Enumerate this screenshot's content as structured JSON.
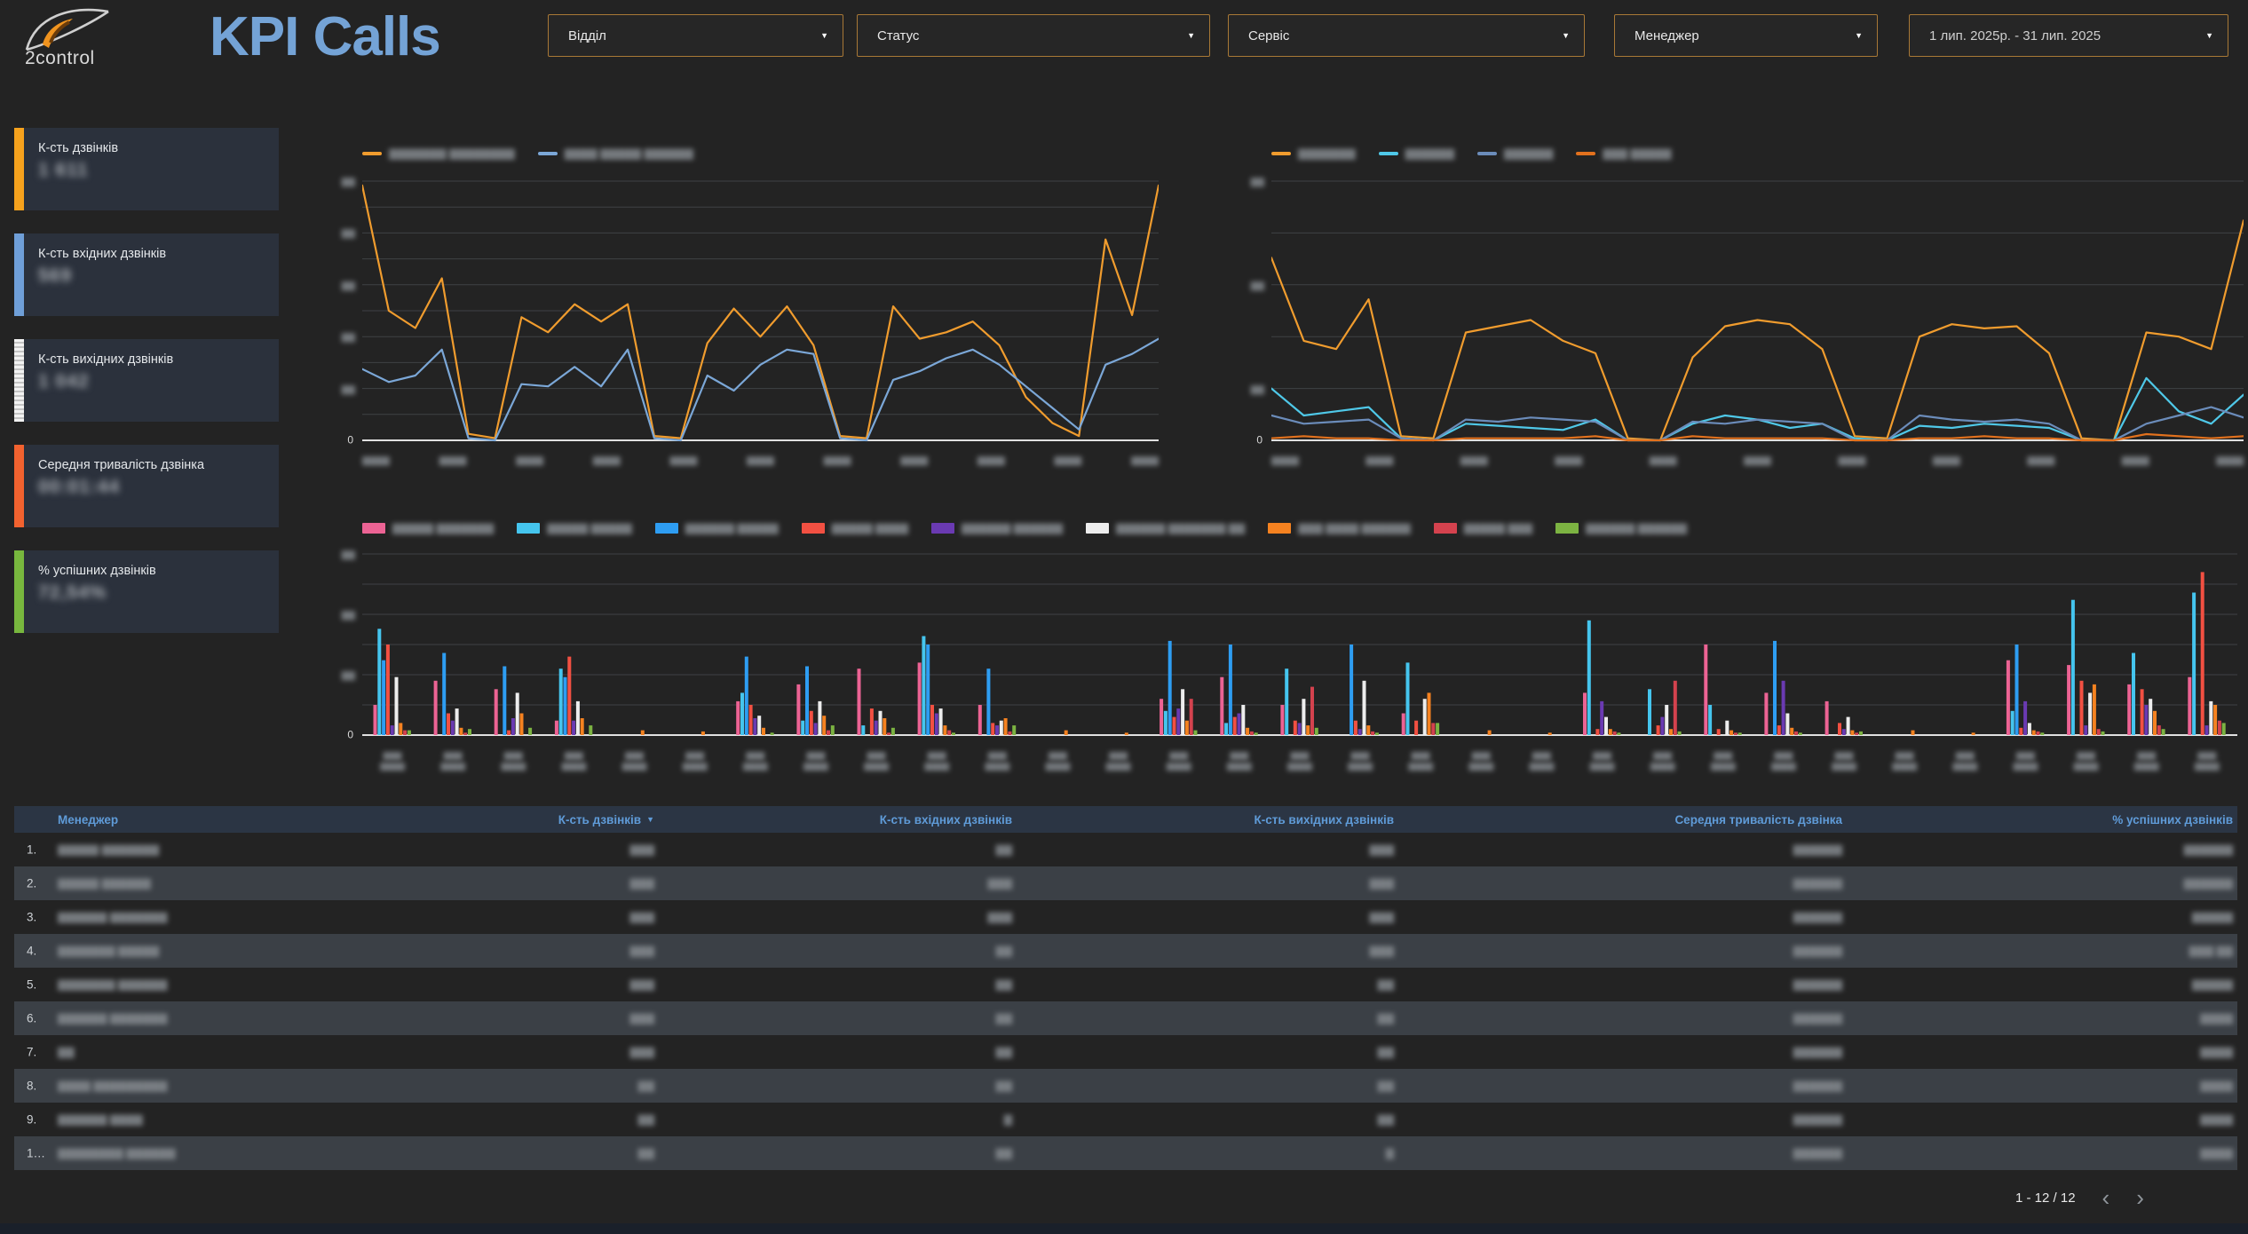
{
  "brand": {
    "name": "2control"
  },
  "header": {
    "title": "KPI Calls",
    "filters": [
      {
        "label": "Відділ"
      },
      {
        "label": "Статус"
      },
      {
        "label": "Сервіс"
      },
      {
        "label": "Менеджер"
      }
    ],
    "date_range": "1 лип. 2025р. - 31 лип. 2025"
  },
  "kpi_cards": [
    {
      "label": "К-сть дзвінків",
      "value_masked": "1 611",
      "accent": "#f6a21d"
    },
    {
      "label": "К-сть вхідних дзвінків",
      "value_masked": "569",
      "accent": "#6f9fd8"
    },
    {
      "label": "К-сть вихідних дзвінків",
      "value_masked": "1 042",
      "accent": "#e3e3e3"
    },
    {
      "label": "Середня тривалість дзвінка",
      "value_masked": "00:01:44",
      "accent": "#f2622f"
    },
    {
      "label": "% успішних дзвінків",
      "value_masked": "72,54%",
      "accent": "#78b73e"
    }
  ],
  "chart_data": [
    {
      "id": "calls-per-day",
      "type": "line",
      "title": "",
      "xlabel": "",
      "ylabel": "",
      "x": "days 1-31 (blurred date tick labels)",
      "ylim": [
        0,
        120
      ],
      "gridlines": 10,
      "x_tick_masks": 11,
      "legend_position": "top",
      "legend": [
        {
          "color": "#f09c2e",
          "label_masked": "▇▇▇▇▇▇▇ ▇▇▇▇▇▇▇▇"
        },
        {
          "color": "#7ba7d7",
          "label_masked": "▇▇▇▇ ▇▇▇▇▇ ▇▇▇▇▇▇"
        }
      ],
      "series": [
        {
          "name": "series-orange",
          "color": "#f09c2e",
          "values": [
            118,
            60,
            52,
            75,
            3,
            1,
            57,
            50,
            63,
            55,
            63,
            2,
            1,
            45,
            61,
            48,
            62,
            44,
            2,
            1,
            62,
            47,
            50,
            55,
            44,
            20,
            8,
            2,
            93,
            58,
            118
          ]
        },
        {
          "name": "series-blue",
          "color": "#7ba7d7",
          "values": [
            33,
            27,
            30,
            42,
            1,
            0,
            26,
            25,
            34,
            25,
            42,
            1,
            0,
            30,
            23,
            35,
            42,
            40,
            1,
            0,
            28,
            32,
            38,
            42,
            35,
            25,
            15,
            5,
            35,
            40,
            47
          ]
        }
      ]
    },
    {
      "id": "calls-per-day-by-type",
      "type": "line",
      "title": "",
      "xlabel": "",
      "ylabel": "",
      "x": "days 1-31 (blurred date tick labels)",
      "ylim": [
        0,
        125
      ],
      "gridlines": 5,
      "x_tick_masks": 11,
      "legend_position": "top",
      "legend": [
        {
          "color": "#f09c2e",
          "label_masked": "▇▇▇▇▇▇▇"
        },
        {
          "color": "#4fc8e8",
          "label_masked": "▇▇▇▇▇▇"
        },
        {
          "color": "#6b8cba",
          "label_masked": "▇▇▇▇▇▇"
        },
        {
          "color": "#e2711d",
          "label_masked": "▇▇▇ ▇▇▇▇▇"
        }
      ],
      "series": [
        {
          "name": "series-orange",
          "color": "#f09c2e",
          "values": [
            88,
            48,
            44,
            68,
            2,
            1,
            52,
            55,
            58,
            48,
            42,
            1,
            0,
            40,
            55,
            58,
            56,
            44,
            2,
            1,
            50,
            56,
            54,
            55,
            42,
            1,
            0,
            52,
            50,
            44,
            106
          ]
        },
        {
          "name": "series-cyan",
          "color": "#4fc8e8",
          "values": [
            25,
            12,
            14,
            16,
            1,
            0,
            8,
            7,
            6,
            5,
            10,
            0,
            0,
            8,
            12,
            10,
            6,
            8,
            1,
            0,
            7,
            6,
            8,
            7,
            6,
            0,
            0,
            30,
            14,
            8,
            22
          ]
        },
        {
          "name": "series-slate",
          "color": "#6b8cba",
          "values": [
            12,
            8,
            9,
            10,
            1,
            0,
            10,
            9,
            11,
            10,
            9,
            0,
            0,
            9,
            8,
            10,
            9,
            8,
            0,
            0,
            12,
            10,
            9,
            10,
            8,
            0,
            0,
            8,
            12,
            16,
            11
          ]
        },
        {
          "name": "series-amber",
          "color": "#e2711d",
          "values": [
            1,
            2,
            1,
            1,
            0,
            0,
            1,
            1,
            1,
            1,
            2,
            0,
            0,
            2,
            1,
            1,
            1,
            1,
            0,
            0,
            1,
            1,
            2,
            1,
            1,
            0,
            0,
            3,
            2,
            1,
            2
          ]
        }
      ]
    },
    {
      "id": "calls-per-day-by-manager",
      "type": "bar",
      "title": "",
      "xlabel": "",
      "ylabel": "",
      "categories": "days 1-31 (blurred two-line date labels)",
      "ylim": [
        0,
        150
      ],
      "gridlines": 6,
      "legend_position": "top",
      "legend": [
        {
          "color": "#ec6394",
          "label_masked": "▇▇▇▇▇ ▇▇▇▇▇▇▇"
        },
        {
          "color": "#45c5ee",
          "label_masked": "▇▇▇▇▇ ▇▇▇▇▇"
        },
        {
          "color": "#2e9df2",
          "label_masked": "▇▇▇▇▇▇ ▇▇▇▇▇"
        },
        {
          "color": "#f25042",
          "label_masked": "▇▇▇▇▇ ▇▇▇▇"
        },
        {
          "color": "#6a3ab2",
          "label_masked": "▇▇▇▇▇▇ ▇▇▇▇▇▇"
        },
        {
          "color": "#ededed",
          "label_masked": "▇▇▇▇▇▇ ▇▇▇▇▇▇▇ ▇▇"
        },
        {
          "color": "#f58220",
          "label_masked": "▇▇▇ ▇▇▇▇ ▇▇▇▇▇▇"
        },
        {
          "color": "#d4424e",
          "label_masked": "▇▇▇▇▇ ▇▇▇"
        },
        {
          "color": "#7cb342",
          "label_masked": "▇▇▇▇▇▇ ▇▇▇▇▇▇"
        }
      ],
      "series": [
        {
          "name": "bar-pink",
          "color": "#ec6394",
          "values": [
            25,
            45,
            38,
            12,
            0,
            0,
            28,
            42,
            55,
            60,
            25,
            0,
            0,
            30,
            48,
            25,
            0,
            18,
            0,
            0,
            35,
            0,
            75,
            35,
            28,
            0,
            0,
            62,
            58,
            42,
            48
          ]
        },
        {
          "name": "bar-cyan",
          "color": "#45c5ee",
          "values": [
            88,
            0,
            0,
            55,
            0,
            0,
            35,
            12,
            8,
            82,
            0,
            0,
            0,
            20,
            10,
            55,
            0,
            60,
            0,
            0,
            95,
            38,
            25,
            0,
            0,
            0,
            0,
            20,
            112,
            68,
            118
          ]
        },
        {
          "name": "bar-blue",
          "color": "#2e9df2",
          "values": [
            62,
            68,
            57,
            48,
            0,
            0,
            65,
            57,
            0,
            75,
            55,
            0,
            0,
            78,
            75,
            0,
            75,
            0,
            0,
            0,
            0,
            0,
            0,
            78,
            0,
            0,
            0,
            75,
            0,
            0,
            0
          ]
        },
        {
          "name": "bar-red",
          "color": "#f25042",
          "values": [
            75,
            18,
            4,
            65,
            0,
            0,
            25,
            20,
            22,
            25,
            10,
            0,
            0,
            15,
            15,
            12,
            12,
            12,
            0,
            0,
            5,
            8,
            5,
            8,
            10,
            0,
            0,
            6,
            45,
            38,
            135
          ]
        },
        {
          "name": "bar-purple",
          "color": "#6a3ab2",
          "values": [
            8,
            12,
            14,
            12,
            0,
            0,
            14,
            10,
            12,
            18,
            8,
            0,
            0,
            22,
            18,
            10,
            5,
            0,
            0,
            0,
            28,
            15,
            0,
            45,
            5,
            0,
            0,
            28,
            8,
            25,
            8
          ]
        },
        {
          "name": "bar-white",
          "color": "#ededed",
          "values": [
            48,
            22,
            35,
            28,
            0,
            0,
            16,
            28,
            20,
            22,
            12,
            0,
            0,
            38,
            25,
            30,
            45,
            30,
            0,
            0,
            15,
            25,
            12,
            18,
            15,
            0,
            0,
            10,
            35,
            30,
            28
          ]
        },
        {
          "name": "bar-orange",
          "color": "#f58220",
          "values": [
            10,
            6,
            18,
            14,
            4,
            3,
            6,
            16,
            14,
            8,
            14,
            4,
            2,
            12,
            6,
            8,
            8,
            35,
            4,
            2,
            5,
            5,
            4,
            6,
            4,
            4,
            2,
            4,
            42,
            20,
            25
          ]
        },
        {
          "name": "bar-crimson",
          "color": "#d4424e",
          "values": [
            4,
            2,
            0,
            0,
            0,
            0,
            0,
            4,
            2,
            4,
            3,
            0,
            0,
            30,
            3,
            40,
            3,
            10,
            0,
            0,
            3,
            45,
            2,
            3,
            2,
            0,
            0,
            3,
            5,
            8,
            12
          ]
        },
        {
          "name": "bar-green",
          "color": "#7cb342",
          "values": [
            4,
            5,
            6,
            8,
            0,
            0,
            2,
            8,
            6,
            2,
            8,
            0,
            0,
            4,
            2,
            6,
            2,
            10,
            0,
            0,
            2,
            3,
            2,
            2,
            3,
            0,
            0,
            2,
            3,
            5,
            10
          ]
        }
      ]
    }
  ],
  "table": {
    "columns": [
      {
        "label": "Менеджер",
        "align": "left",
        "sorted": false
      },
      {
        "label": "К-сть дзвінків",
        "align": "right",
        "sorted": true
      },
      {
        "label": "К-сть вхідних дзвінків",
        "align": "right",
        "sorted": false
      },
      {
        "label": "К-сть вихідних дзвінків",
        "align": "right",
        "sorted": false
      },
      {
        "label": "Середня тривалість дзвінка",
        "align": "right",
        "sorted": false
      },
      {
        "label": "% успішних дзвінків",
        "align": "right",
        "sorted": false
      }
    ],
    "rows": [
      {
        "num": "1.",
        "name_masked": "▇▇▇▇▇ ▇▇▇▇▇▇▇",
        "cells_masked": [
          "▇▇▇",
          "▇▇",
          "▇▇▇",
          "▇▇▇▇▇▇",
          "▇▇▇▇▇▇"
        ]
      },
      {
        "num": "2.",
        "name_masked": "▇▇▇▇▇ ▇▇▇▇▇▇",
        "cells_masked": [
          "▇▇▇",
          "▇▇▇",
          "▇▇▇",
          "▇▇▇▇▇▇",
          "▇▇▇▇▇▇"
        ]
      },
      {
        "num": "3.",
        "name_masked": "▇▇▇▇▇▇ ▇▇▇▇▇▇▇",
        "cells_masked": [
          "▇▇▇",
          "▇▇▇",
          "▇▇▇",
          "▇▇▇▇▇▇",
          "▇▇▇▇▇"
        ]
      },
      {
        "num": "4.",
        "name_masked": "▇▇▇▇▇▇▇ ▇▇▇▇▇",
        "cells_masked": [
          "▇▇▇",
          "▇▇",
          "▇▇▇",
          "▇▇▇▇▇▇",
          "▇▇▇ ▇▇"
        ]
      },
      {
        "num": "5.",
        "name_masked": "▇▇▇▇▇▇▇ ▇▇▇▇▇▇",
        "cells_masked": [
          "▇▇▇",
          "▇▇",
          "▇▇",
          "▇▇▇▇▇▇",
          "▇▇▇▇▇"
        ]
      },
      {
        "num": "6.",
        "name_masked": "▇▇▇▇▇▇ ▇▇▇▇▇▇▇",
        "cells_masked": [
          "▇▇▇",
          "▇▇",
          "▇▇",
          "▇▇▇▇▇▇",
          "▇▇▇▇"
        ]
      },
      {
        "num": "7.",
        "name_masked": "▇▇",
        "cells_masked": [
          "▇▇▇",
          "▇▇",
          "▇▇",
          "▇▇▇▇▇▇",
          "▇▇▇▇"
        ]
      },
      {
        "num": "8.",
        "name_masked": "▇▇▇▇ ▇▇▇▇▇▇▇▇▇",
        "cells_masked": [
          "▇▇",
          "▇▇",
          "▇▇",
          "▇▇▇▇▇▇",
          "▇▇▇▇"
        ]
      },
      {
        "num": "9.",
        "name_masked": "▇▇▇▇▇▇ ▇▇▇▇",
        "cells_masked": [
          "▇▇",
          "▇",
          "▇▇",
          "▇▇▇▇▇▇",
          "▇▇▇▇"
        ]
      },
      {
        "num": "1…",
        "name_masked": "▇▇▇▇▇▇▇▇ ▇▇▇▇▇▇",
        "cells_masked": [
          "▇▇",
          "▇▇",
          "▇",
          "▇▇▇▇▇▇",
          "▇▇▇▇"
        ]
      }
    ]
  },
  "pagination": {
    "range_label": "1 - 12 / 12",
    "prev_icon": "chevron-left",
    "next_icon": "chevron-right"
  },
  "colors": {
    "page_bg": "#232323",
    "card_bg": "#2b313c",
    "table_header_bg": "#2b3544",
    "table_header_text": "#5f9bd8",
    "row_even_bg": "#3b4046",
    "accent_border": "#a87836",
    "title": "#74a3d6",
    "gridline": "#3f4245",
    "zero_axis": "#e0e0e0"
  }
}
